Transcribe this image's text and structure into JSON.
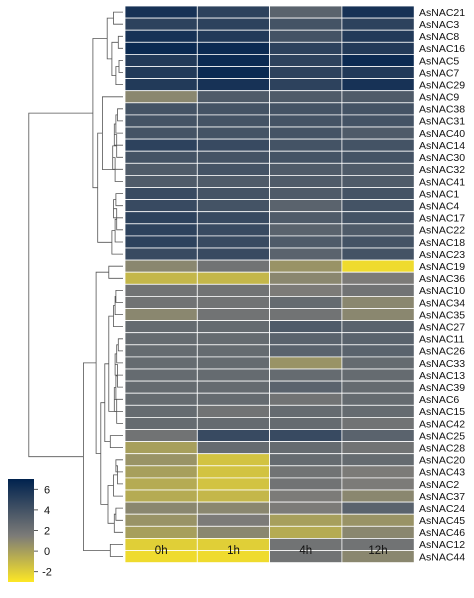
{
  "chart_data": {
    "type": "heatmap",
    "columns": [
      "0h",
      "1h",
      "4h",
      "12h"
    ],
    "rows": [
      "AsNAC21",
      "AsNAC3",
      "AsNAC8",
      "AsNAC16",
      "AsNAC5",
      "AsNAC7",
      "AsNAC29",
      "AsNAC9",
      "AsNAC38",
      "AsNAC31",
      "AsNAC40",
      "AsNAC14",
      "AsNAC30",
      "AsNAC32",
      "AsNAC41",
      "AsNAC1",
      "AsNAC4",
      "AsNAC17",
      "AsNAC22",
      "AsNAC18",
      "AsNAC23",
      "AsNAC19",
      "AsNAC36",
      "AsNAC10",
      "AsNAC34",
      "AsNAC35",
      "AsNAC27",
      "AsNAC11",
      "AsNAC26",
      "AsNAC33",
      "AsNAC13",
      "AsNAC39",
      "AsNAC6",
      "AsNAC15",
      "AsNAC42",
      "AsNAC25",
      "AsNAC28",
      "AsNAC20",
      "AsNAC43",
      "AsNAC2",
      "AsNAC37",
      "AsNAC24",
      "AsNAC45",
      "AsNAC46",
      "AsNAC12",
      "AsNAC44"
    ],
    "values": [
      [
        6.0,
        5.0,
        3.0,
        6.0
      ],
      [
        5.0,
        5.0,
        4.0,
        5.0
      ],
      [
        6.0,
        5.5,
        4.0,
        5.5
      ],
      [
        6.5,
        6.5,
        5.0,
        5.5
      ],
      [
        5.5,
        6.5,
        5.0,
        6.5
      ],
      [
        5.5,
        6.5,
        5.0,
        5.5
      ],
      [
        5.5,
        6.0,
        5.0,
        6.0
      ],
      [
        1.0,
        3.5,
        3.5,
        3.5
      ],
      [
        4.0,
        4.0,
        4.0,
        4.0
      ],
      [
        4.0,
        4.0,
        4.0,
        4.0
      ],
      [
        4.0,
        4.0,
        4.0,
        3.5
      ],
      [
        5.0,
        4.5,
        4.0,
        4.0
      ],
      [
        4.0,
        4.0,
        4.0,
        4.0
      ],
      [
        3.5,
        4.0,
        3.5,
        3.5
      ],
      [
        3.5,
        3.5,
        3.5,
        3.5
      ],
      [
        4.5,
        4.0,
        3.5,
        4.0
      ],
      [
        4.5,
        4.0,
        3.0,
        4.0
      ],
      [
        5.0,
        4.5,
        3.5,
        4.0
      ],
      [
        5.0,
        4.5,
        3.0,
        3.5
      ],
      [
        5.0,
        4.5,
        3.5,
        4.0
      ],
      [
        4.5,
        4.5,
        3.0,
        4.0
      ],
      [
        1.0,
        2.0,
        0.5,
        -2.5
      ],
      [
        -1.0,
        -1.0,
        1.0,
        1.5
      ],
      [
        2.0,
        2.0,
        1.5,
        2.0
      ],
      [
        2.0,
        2.0,
        2.5,
        1.0
      ],
      [
        1.0,
        2.0,
        2.0,
        1.0
      ],
      [
        2.5,
        2.5,
        3.5,
        3.0
      ],
      [
        2.5,
        2.5,
        3.0,
        3.0
      ],
      [
        2.5,
        2.5,
        3.0,
        3.0
      ],
      [
        2.5,
        2.5,
        0.5,
        2.5
      ],
      [
        2.5,
        2.5,
        2.5,
        2.5
      ],
      [
        2.5,
        2.5,
        3.0,
        2.5
      ],
      [
        2.5,
        2.5,
        2.0,
        2.5
      ],
      [
        2.5,
        2.0,
        2.5,
        2.5
      ],
      [
        2.5,
        2.5,
        2.5,
        2.0
      ],
      [
        2.0,
        4.5,
        4.5,
        3.0
      ],
      [
        0.0,
        2.5,
        2.5,
        2.0
      ],
      [
        0.5,
        -1.5,
        2.5,
        2.5
      ],
      [
        0.0,
        -1.5,
        2.0,
        1.5
      ],
      [
        -0.5,
        -1.5,
        2.0,
        1.5
      ],
      [
        -0.5,
        -1.0,
        1.5,
        1.0
      ],
      [
        1.0,
        1.0,
        1.5,
        3.0
      ],
      [
        0.5,
        1.5,
        0.0,
        0.5
      ],
      [
        0.0,
        1.0,
        -0.5,
        1.0
      ],
      [
        -2.0,
        -2.0,
        2.0,
        2.0
      ],
      [
        -2.5,
        -2.5,
        2.0,
        1.0
      ]
    ],
    "colorbar": {
      "ticks": [
        6,
        4,
        2,
        0,
        -2
      ],
      "range": [
        -3,
        7
      ],
      "low_color": "#fde725",
      "mid_color": "#7c7b78",
      "high_color": "#00224e"
    },
    "dendrogram": "rows"
  }
}
